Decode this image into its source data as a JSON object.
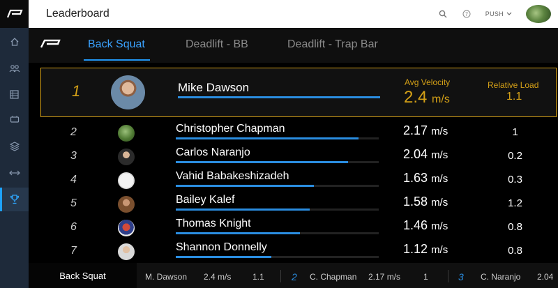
{
  "header": {
    "title": "Leaderboard",
    "push_label": "PUSH"
  },
  "tabs": [
    {
      "label": "Back Squat",
      "active": true
    },
    {
      "label": "Deadlift - BB",
      "active": false
    },
    {
      "label": "Deadlift - Trap Bar",
      "active": false
    }
  ],
  "sidebar": {
    "items": [
      {
        "icon": "home-icon"
      },
      {
        "icon": "group-icon"
      },
      {
        "icon": "table-icon"
      },
      {
        "icon": "weight-icon"
      },
      {
        "icon": "layers-icon"
      },
      {
        "icon": "range-icon"
      },
      {
        "icon": "trophy-icon",
        "active": true
      }
    ]
  },
  "leader": {
    "rank": "1",
    "name": "Mike Dawson",
    "avg_velocity_label": "Avg Velocity",
    "avg_velocity": "2.4",
    "velocity_unit": "m/s",
    "relative_load_label": "Relative Load",
    "relative_load": "1.1",
    "bar_fraction": 1.0
  },
  "rows": [
    {
      "rank": "2",
      "name": "Christopher Chapman",
      "velocity": "2.17",
      "unit": "m/s",
      "load": "1",
      "bar_fraction": 0.9
    },
    {
      "rank": "3",
      "name": "Carlos Naranjo",
      "velocity": "2.04",
      "unit": "m/s",
      "load": "0.2",
      "bar_fraction": 0.85
    },
    {
      "rank": "4",
      "name": "Vahid Babakeshizadeh",
      "velocity": "1.63",
      "unit": "m/s",
      "load": "0.3",
      "bar_fraction": 0.68
    },
    {
      "rank": "5",
      "name": "Bailey Kalef",
      "velocity": "1.58",
      "unit": "m/s",
      "load": "1.2",
      "bar_fraction": 0.66
    },
    {
      "rank": "6",
      "name": "Thomas Knight",
      "velocity": "1.46",
      "unit": "m/s",
      "load": "0.8",
      "bar_fraction": 0.61
    },
    {
      "rank": "7",
      "name": "Shannon Donnelly",
      "velocity": "1.12",
      "unit": "m/s",
      "load": "0.8",
      "bar_fraction": 0.47
    }
  ],
  "ticker": {
    "label": "Back Squat",
    "entries": [
      {
        "rank": "",
        "name": "M. Dawson",
        "velocity": "2.4 m/s",
        "load": "1.1"
      },
      {
        "rank": "2",
        "name": "C. Chapman",
        "velocity": "2.17 m/s",
        "load": "1"
      },
      {
        "rank": "3",
        "name": "C. Naranjo",
        "velocity": "2.04",
        "load": ""
      }
    ]
  },
  "colors": {
    "accent": "#2196f3",
    "gold": "#d4a017",
    "sidebar": "#1e2a3a"
  }
}
